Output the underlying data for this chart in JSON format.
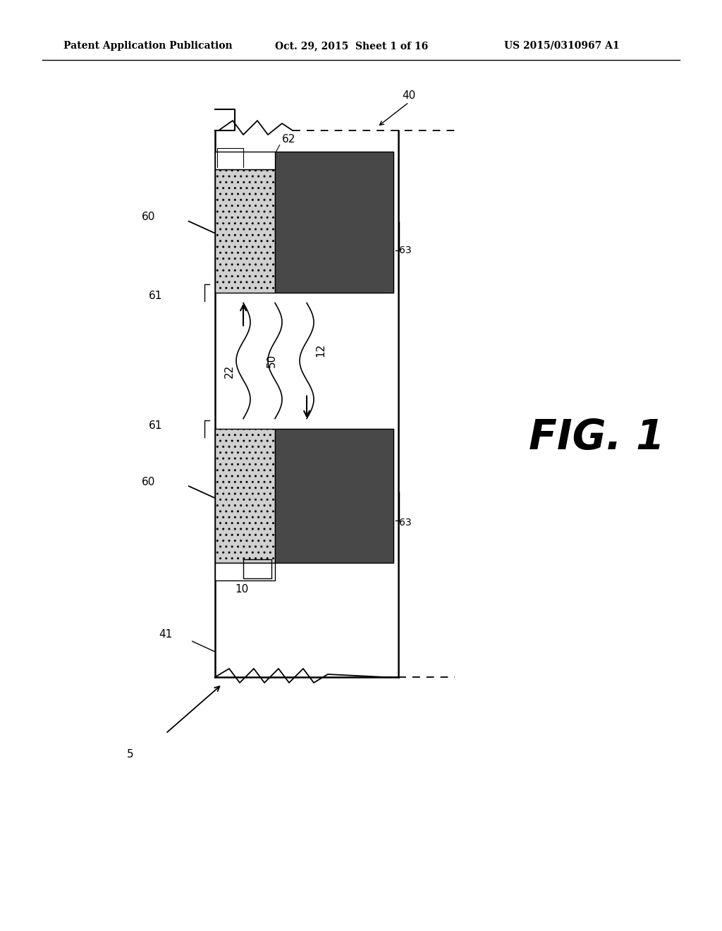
{
  "bg_color": "#ffffff",
  "header_text1": "Patent Application Publication",
  "header_text2": "Oct. 29, 2015  Sheet 1 of 16",
  "header_text3": "US 2015/0310967 A1",
  "fig_label": "FIG. 1",
  "dotted_fill": "#d0d0d0",
  "dark_fill": "#484848",
  "white_fill": "#ffffff",
  "black": "#000000"
}
